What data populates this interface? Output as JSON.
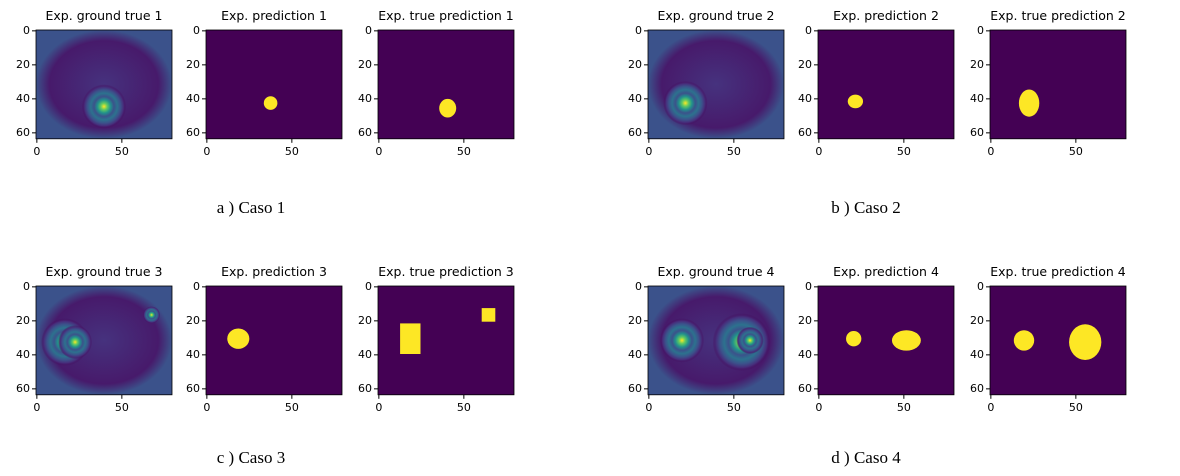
{
  "axes": {
    "xticks": [
      0,
      50
    ],
    "yticks": [
      0,
      20,
      40,
      60
    ]
  },
  "cases": [
    {
      "caption": "a ) Caso 1",
      "panels": [
        {
          "title": "Exp. ground true 1"
        },
        {
          "title": "Exp. prediction 1"
        },
        {
          "title": "Exp. true prediction 1"
        }
      ]
    },
    {
      "caption": "b ) Caso 2",
      "panels": [
        {
          "title": "Exp. ground true 2"
        },
        {
          "title": "Exp. prediction 2"
        },
        {
          "title": "Exp. true prediction 2"
        }
      ]
    },
    {
      "caption": "c ) Caso 3",
      "panels": [
        {
          "title": "Exp. ground true 3"
        },
        {
          "title": "Exp. prediction 3"
        },
        {
          "title": "Exp. true prediction 3"
        }
      ]
    },
    {
      "caption": "d ) Caso 4",
      "panels": [
        {
          "title": "Exp. ground true 4"
        },
        {
          "title": "Exp. prediction 4"
        },
        {
          "title": "Exp. true prediction 4"
        }
      ]
    }
  ]
}
